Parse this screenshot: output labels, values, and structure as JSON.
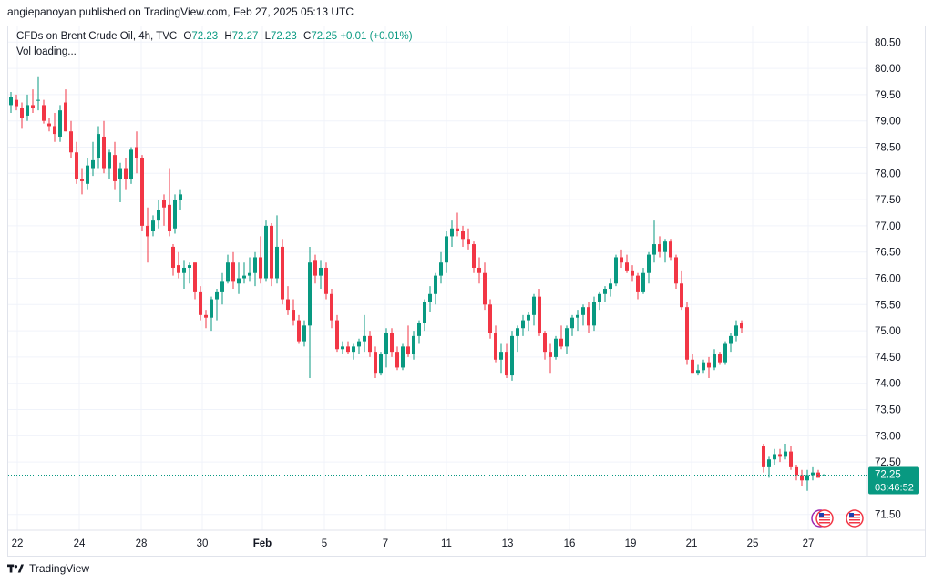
{
  "header": {
    "publish_line": "angiepanoyan published on TradingView.com, Feb 27, 2025 05:13 UTC"
  },
  "legend": {
    "symbol": "CFDs on Brent Crude Oil, 4h, TVC",
    "o_label": "O",
    "o_value": "72.23",
    "h_label": "H",
    "h_value": "72.27",
    "l_label": "L",
    "l_value": "72.23",
    "c_label": "C",
    "c_value": "72.25",
    "change": "+0.01 (+0.01%)",
    "vol_text": "Vol loading..."
  },
  "price_tag": {
    "price": "72.25",
    "countdown": "03:46:52"
  },
  "footer": {
    "brand": "TradingView"
  },
  "colors": {
    "up": "#089981",
    "down": "#f23645",
    "grid": "#f0f3fa",
    "axis_text": "#131722"
  },
  "chart_data": {
    "type": "candlestick",
    "title": "CFDs on Brent Crude Oil, 4h, TVC",
    "ylim": [
      71.2,
      80.8
    ],
    "y_ticks": [
      "80.50",
      "80.00",
      "79.50",
      "79.00",
      "78.50",
      "78.00",
      "77.50",
      "77.00",
      "76.50",
      "76.00",
      "75.50",
      "75.00",
      "74.50",
      "74.00",
      "73.50",
      "73.00",
      "72.50",
      "71.50"
    ],
    "x_ticks": [
      "22",
      "24",
      "28",
      "30",
      "Feb",
      "5",
      "7",
      "11",
      "13",
      "16",
      "19",
      "21",
      "25",
      "27"
    ],
    "last_price": 72.25,
    "candles": [
      {
        "o": 79.3,
        "h": 79.55,
        "l": 79.15,
        "c": 79.45
      },
      {
        "o": 79.4,
        "h": 79.5,
        "l": 79.2,
        "c": 79.28
      },
      {
        "o": 79.25,
        "h": 79.35,
        "l": 78.85,
        "c": 79.05
      },
      {
        "o": 79.1,
        "h": 79.5,
        "l": 79.0,
        "c": 79.3
      },
      {
        "o": 79.3,
        "h": 79.6,
        "l": 79.15,
        "c": 79.25
      },
      {
        "o": 79.4,
        "h": 79.85,
        "l": 79.2,
        "c": 79.4
      },
      {
        "o": 79.3,
        "h": 79.4,
        "l": 78.95,
        "c": 79.0
      },
      {
        "o": 78.95,
        "h": 79.05,
        "l": 78.8,
        "c": 78.9
      },
      {
        "o": 78.9,
        "h": 79.15,
        "l": 78.6,
        "c": 78.75
      },
      {
        "o": 78.7,
        "h": 79.3,
        "l": 78.6,
        "c": 79.2
      },
      {
        "o": 79.35,
        "h": 79.6,
        "l": 78.8,
        "c": 78.8
      },
      {
        "o": 78.8,
        "h": 79.0,
        "l": 78.3,
        "c": 78.4
      },
      {
        "o": 78.4,
        "h": 78.6,
        "l": 77.8,
        "c": 77.9
      },
      {
        "o": 77.9,
        "h": 78.1,
        "l": 77.6,
        "c": 77.85
      },
      {
        "o": 77.8,
        "h": 78.3,
        "l": 77.7,
        "c": 78.15
      },
      {
        "o": 78.1,
        "h": 78.6,
        "l": 77.95,
        "c": 78.25
      },
      {
        "o": 78.3,
        "h": 78.9,
        "l": 78.1,
        "c": 78.75
      },
      {
        "o": 78.7,
        "h": 79.0,
        "l": 78.0,
        "c": 78.1
      },
      {
        "o": 78.1,
        "h": 78.45,
        "l": 77.9,
        "c": 78.4
      },
      {
        "o": 78.35,
        "h": 78.6,
        "l": 77.7,
        "c": 77.85
      },
      {
        "o": 77.9,
        "h": 78.2,
        "l": 77.45,
        "c": 78.1
      },
      {
        "o": 78.1,
        "h": 78.3,
        "l": 77.7,
        "c": 77.9
      },
      {
        "o": 77.9,
        "h": 78.5,
        "l": 77.8,
        "c": 78.45
      },
      {
        "o": 78.5,
        "h": 78.8,
        "l": 78.0,
        "c": 78.3
      },
      {
        "o": 78.3,
        "h": 78.35,
        "l": 76.9,
        "c": 77.0
      },
      {
        "o": 77.0,
        "h": 77.35,
        "l": 76.3,
        "c": 76.8
      },
      {
        "o": 76.9,
        "h": 77.2,
        "l": 76.8,
        "c": 77.1
      },
      {
        "o": 77.1,
        "h": 77.5,
        "l": 76.95,
        "c": 77.3
      },
      {
        "o": 77.5,
        "h": 77.6,
        "l": 77.0,
        "c": 77.35
      },
      {
        "o": 77.4,
        "h": 78.1,
        "l": 76.8,
        "c": 76.9
      },
      {
        "o": 76.95,
        "h": 77.6,
        "l": 76.85,
        "c": 77.5
      },
      {
        "o": 77.5,
        "h": 77.7,
        "l": 77.3,
        "c": 77.6
      },
      {
        "o": 76.6,
        "h": 76.65,
        "l": 76.05,
        "c": 76.2
      },
      {
        "o": 76.25,
        "h": 76.5,
        "l": 76.0,
        "c": 76.1
      },
      {
        "o": 76.1,
        "h": 76.35,
        "l": 75.8,
        "c": 76.2
      },
      {
        "o": 76.2,
        "h": 76.3,
        "l": 75.9,
        "c": 76.25
      },
      {
        "o": 76.3,
        "h": 76.3,
        "l": 75.6,
        "c": 75.75
      },
      {
        "o": 75.75,
        "h": 75.85,
        "l": 75.2,
        "c": 75.3
      },
      {
        "o": 75.3,
        "h": 75.4,
        "l": 75.05,
        "c": 75.25
      },
      {
        "o": 75.25,
        "h": 75.65,
        "l": 75.0,
        "c": 75.6
      },
      {
        "o": 75.6,
        "h": 75.8,
        "l": 75.2,
        "c": 75.75
      },
      {
        "o": 75.75,
        "h": 76.1,
        "l": 75.5,
        "c": 75.95
      },
      {
        "o": 75.95,
        "h": 76.45,
        "l": 75.9,
        "c": 76.3
      },
      {
        "o": 76.3,
        "h": 76.5,
        "l": 75.8,
        "c": 75.95
      },
      {
        "o": 75.9,
        "h": 76.3,
        "l": 75.7,
        "c": 76.0
      },
      {
        "o": 76.0,
        "h": 76.3,
        "l": 75.9,
        "c": 76.05
      },
      {
        "o": 76.05,
        "h": 76.4,
        "l": 75.95,
        "c": 76.1
      },
      {
        "o": 76.1,
        "h": 76.5,
        "l": 75.85,
        "c": 76.4
      },
      {
        "o": 76.4,
        "h": 76.8,
        "l": 75.9,
        "c": 76.0
      },
      {
        "o": 76.0,
        "h": 77.1,
        "l": 75.95,
        "c": 77.0
      },
      {
        "o": 77.0,
        "h": 77.05,
        "l": 75.85,
        "c": 76.0
      },
      {
        "o": 76.0,
        "h": 77.2,
        "l": 75.9,
        "c": 76.6
      },
      {
        "o": 76.6,
        "h": 76.75,
        "l": 75.5,
        "c": 75.6
      },
      {
        "o": 75.6,
        "h": 75.85,
        "l": 75.3,
        "c": 75.4
      },
      {
        "o": 75.4,
        "h": 75.6,
        "l": 75.1,
        "c": 75.2
      },
      {
        "o": 75.2,
        "h": 75.3,
        "l": 74.75,
        "c": 74.8
      },
      {
        "o": 74.8,
        "h": 75.2,
        "l": 74.7,
        "c": 75.1
      },
      {
        "o": 75.1,
        "h": 76.6,
        "l": 74.1,
        "c": 76.3
      },
      {
        "o": 76.35,
        "h": 76.45,
        "l": 75.9,
        "c": 76.05
      },
      {
        "o": 76.05,
        "h": 76.35,
        "l": 75.8,
        "c": 76.2
      },
      {
        "o": 76.2,
        "h": 76.3,
        "l": 75.6,
        "c": 75.7
      },
      {
        "o": 75.7,
        "h": 75.8,
        "l": 75.05,
        "c": 75.2
      },
      {
        "o": 75.2,
        "h": 75.3,
        "l": 74.6,
        "c": 74.65
      },
      {
        "o": 74.65,
        "h": 74.8,
        "l": 74.55,
        "c": 74.7
      },
      {
        "o": 74.7,
        "h": 74.8,
        "l": 74.55,
        "c": 74.6
      },
      {
        "o": 74.6,
        "h": 74.75,
        "l": 74.45,
        "c": 74.7
      },
      {
        "o": 74.7,
        "h": 74.85,
        "l": 74.55,
        "c": 74.8
      },
      {
        "o": 74.8,
        "h": 75.3,
        "l": 74.6,
        "c": 74.9
      },
      {
        "o": 74.9,
        "h": 75.0,
        "l": 74.5,
        "c": 74.6
      },
      {
        "o": 74.6,
        "h": 74.7,
        "l": 74.1,
        "c": 74.2
      },
      {
        "o": 74.2,
        "h": 74.6,
        "l": 74.15,
        "c": 74.55
      },
      {
        "o": 74.55,
        "h": 75.05,
        "l": 74.3,
        "c": 74.95
      },
      {
        "o": 74.95,
        "h": 75.05,
        "l": 74.5,
        "c": 74.6
      },
      {
        "o": 74.6,
        "h": 74.7,
        "l": 74.25,
        "c": 74.3
      },
      {
        "o": 74.3,
        "h": 74.75,
        "l": 74.25,
        "c": 74.7
      },
      {
        "o": 74.7,
        "h": 75.1,
        "l": 74.5,
        "c": 74.55
      },
      {
        "o": 74.55,
        "h": 75.0,
        "l": 74.45,
        "c": 74.9
      },
      {
        "o": 74.9,
        "h": 75.2,
        "l": 74.75,
        "c": 75.15
      },
      {
        "o": 75.15,
        "h": 75.6,
        "l": 75.0,
        "c": 75.55
      },
      {
        "o": 75.55,
        "h": 75.85,
        "l": 75.35,
        "c": 75.7
      },
      {
        "o": 75.7,
        "h": 76.1,
        "l": 75.5,
        "c": 76.05
      },
      {
        "o": 76.05,
        "h": 76.5,
        "l": 75.9,
        "c": 76.3
      },
      {
        "o": 76.3,
        "h": 76.9,
        "l": 76.1,
        "c": 76.8
      },
      {
        "o": 76.8,
        "h": 77.1,
        "l": 76.6,
        "c": 76.95
      },
      {
        "o": 76.95,
        "h": 77.25,
        "l": 76.8,
        "c": 76.9
      },
      {
        "o": 76.9,
        "h": 77.0,
        "l": 76.6,
        "c": 76.75
      },
      {
        "o": 76.75,
        "h": 76.95,
        "l": 76.55,
        "c": 76.65
      },
      {
        "o": 76.65,
        "h": 76.7,
        "l": 76.1,
        "c": 76.2
      },
      {
        "o": 76.2,
        "h": 76.4,
        "l": 75.9,
        "c": 76.1
      },
      {
        "o": 76.1,
        "h": 76.3,
        "l": 75.4,
        "c": 75.5
      },
      {
        "o": 75.5,
        "h": 75.6,
        "l": 74.85,
        "c": 74.95
      },
      {
        "o": 74.95,
        "h": 75.1,
        "l": 74.4,
        "c": 74.45
      },
      {
        "o": 74.45,
        "h": 74.75,
        "l": 74.2,
        "c": 74.6
      },
      {
        "o": 74.6,
        "h": 74.75,
        "l": 74.1,
        "c": 74.15
      },
      {
        "o": 74.15,
        "h": 75.0,
        "l": 74.05,
        "c": 74.9
      },
      {
        "o": 74.9,
        "h": 75.1,
        "l": 74.6,
        "c": 75.05
      },
      {
        "o": 75.05,
        "h": 75.3,
        "l": 74.9,
        "c": 75.2
      },
      {
        "o": 75.2,
        "h": 75.35,
        "l": 75.0,
        "c": 75.3
      },
      {
        "o": 75.3,
        "h": 75.7,
        "l": 75.1,
        "c": 75.65
      },
      {
        "o": 75.65,
        "h": 75.8,
        "l": 74.9,
        "c": 74.95
      },
      {
        "o": 74.95,
        "h": 75.0,
        "l": 74.45,
        "c": 74.6
      },
      {
        "o": 74.6,
        "h": 74.75,
        "l": 74.2,
        "c": 74.5
      },
      {
        "o": 74.5,
        "h": 74.9,
        "l": 74.45,
        "c": 74.85
      },
      {
        "o": 74.85,
        "h": 75.1,
        "l": 74.65,
        "c": 74.7
      },
      {
        "o": 74.7,
        "h": 75.1,
        "l": 74.55,
        "c": 75.05
      },
      {
        "o": 75.05,
        "h": 75.3,
        "l": 74.9,
        "c": 75.25
      },
      {
        "o": 75.25,
        "h": 75.4,
        "l": 75.0,
        "c": 75.3
      },
      {
        "o": 75.3,
        "h": 75.5,
        "l": 75.1,
        "c": 75.45
      },
      {
        "o": 75.45,
        "h": 75.55,
        "l": 74.95,
        "c": 75.1
      },
      {
        "o": 75.1,
        "h": 75.65,
        "l": 75.0,
        "c": 75.55
      },
      {
        "o": 75.55,
        "h": 75.75,
        "l": 75.4,
        "c": 75.7
      },
      {
        "o": 75.7,
        "h": 75.85,
        "l": 75.55,
        "c": 75.8
      },
      {
        "o": 75.8,
        "h": 76.0,
        "l": 75.65,
        "c": 75.9
      },
      {
        "o": 75.9,
        "h": 76.45,
        "l": 75.85,
        "c": 76.4
      },
      {
        "o": 76.4,
        "h": 76.55,
        "l": 76.2,
        "c": 76.3
      },
      {
        "o": 76.3,
        "h": 76.45,
        "l": 76.1,
        "c": 76.15
      },
      {
        "o": 76.15,
        "h": 76.25,
        "l": 75.95,
        "c": 76.05
      },
      {
        "o": 76.05,
        "h": 76.1,
        "l": 75.6,
        "c": 75.75
      },
      {
        "o": 75.75,
        "h": 76.2,
        "l": 75.7,
        "c": 76.1
      },
      {
        "o": 76.1,
        "h": 76.5,
        "l": 75.9,
        "c": 76.45
      },
      {
        "o": 76.45,
        "h": 77.1,
        "l": 76.3,
        "c": 76.65
      },
      {
        "o": 76.65,
        "h": 76.8,
        "l": 76.4,
        "c": 76.5
      },
      {
        "o": 76.5,
        "h": 76.75,
        "l": 76.3,
        "c": 76.7
      },
      {
        "o": 76.7,
        "h": 76.75,
        "l": 76.35,
        "c": 76.4
      },
      {
        "o": 76.4,
        "h": 76.45,
        "l": 75.8,
        "c": 75.9
      },
      {
        "o": 75.9,
        "h": 76.15,
        "l": 75.4,
        "c": 75.45
      },
      {
        "o": 75.45,
        "h": 75.55,
        "l": 74.35,
        "c": 74.45
      },
      {
        "o": 74.45,
        "h": 74.55,
        "l": 74.2,
        "c": 74.2
      },
      {
        "o": 74.2,
        "h": 74.35,
        "l": 74.15,
        "c": 74.25
      },
      {
        "o": 74.25,
        "h": 74.45,
        "l": 74.2,
        "c": 74.4
      },
      {
        "o": 74.4,
        "h": 74.5,
        "l": 74.1,
        "c": 74.3
      },
      {
        "o": 74.3,
        "h": 74.65,
        "l": 74.25,
        "c": 74.55
      },
      {
        "o": 74.55,
        "h": 74.6,
        "l": 74.35,
        "c": 74.4
      },
      {
        "o": 74.4,
        "h": 74.8,
        "l": 74.35,
        "c": 74.75
      },
      {
        "o": 74.75,
        "h": 74.95,
        "l": 74.6,
        "c": 74.9
      },
      {
        "o": 74.9,
        "h": 75.2,
        "l": 74.8,
        "c": 75.1
      },
      {
        "o": 75.15,
        "h": 75.2,
        "l": 74.95,
        "c": 75.05
      },
      {
        "o": 72.8,
        "h": 72.85,
        "l": 72.3,
        "c": 72.4
      },
      {
        "o": 72.4,
        "h": 72.6,
        "l": 72.2,
        "c": 72.55
      },
      {
        "o": 72.55,
        "h": 72.75,
        "l": 72.45,
        "c": 72.65
      },
      {
        "o": 72.65,
        "h": 72.75,
        "l": 72.5,
        "c": 72.6
      },
      {
        "o": 72.6,
        "h": 72.85,
        "l": 72.55,
        "c": 72.7
      },
      {
        "o": 72.7,
        "h": 72.8,
        "l": 72.35,
        "c": 72.4
      },
      {
        "o": 72.4,
        "h": 72.45,
        "l": 72.15,
        "c": 72.25
      },
      {
        "o": 72.25,
        "h": 72.35,
        "l": 72.05,
        "c": 72.15
      },
      {
        "o": 72.15,
        "h": 72.35,
        "l": 71.95,
        "c": 72.25
      },
      {
        "o": 72.25,
        "h": 72.4,
        "l": 72.15,
        "c": 72.3
      },
      {
        "o": 72.3,
        "h": 72.35,
        "l": 72.2,
        "c": 72.2
      },
      {
        "o": 72.23,
        "h": 72.27,
        "l": 72.23,
        "c": 72.25
      }
    ]
  }
}
